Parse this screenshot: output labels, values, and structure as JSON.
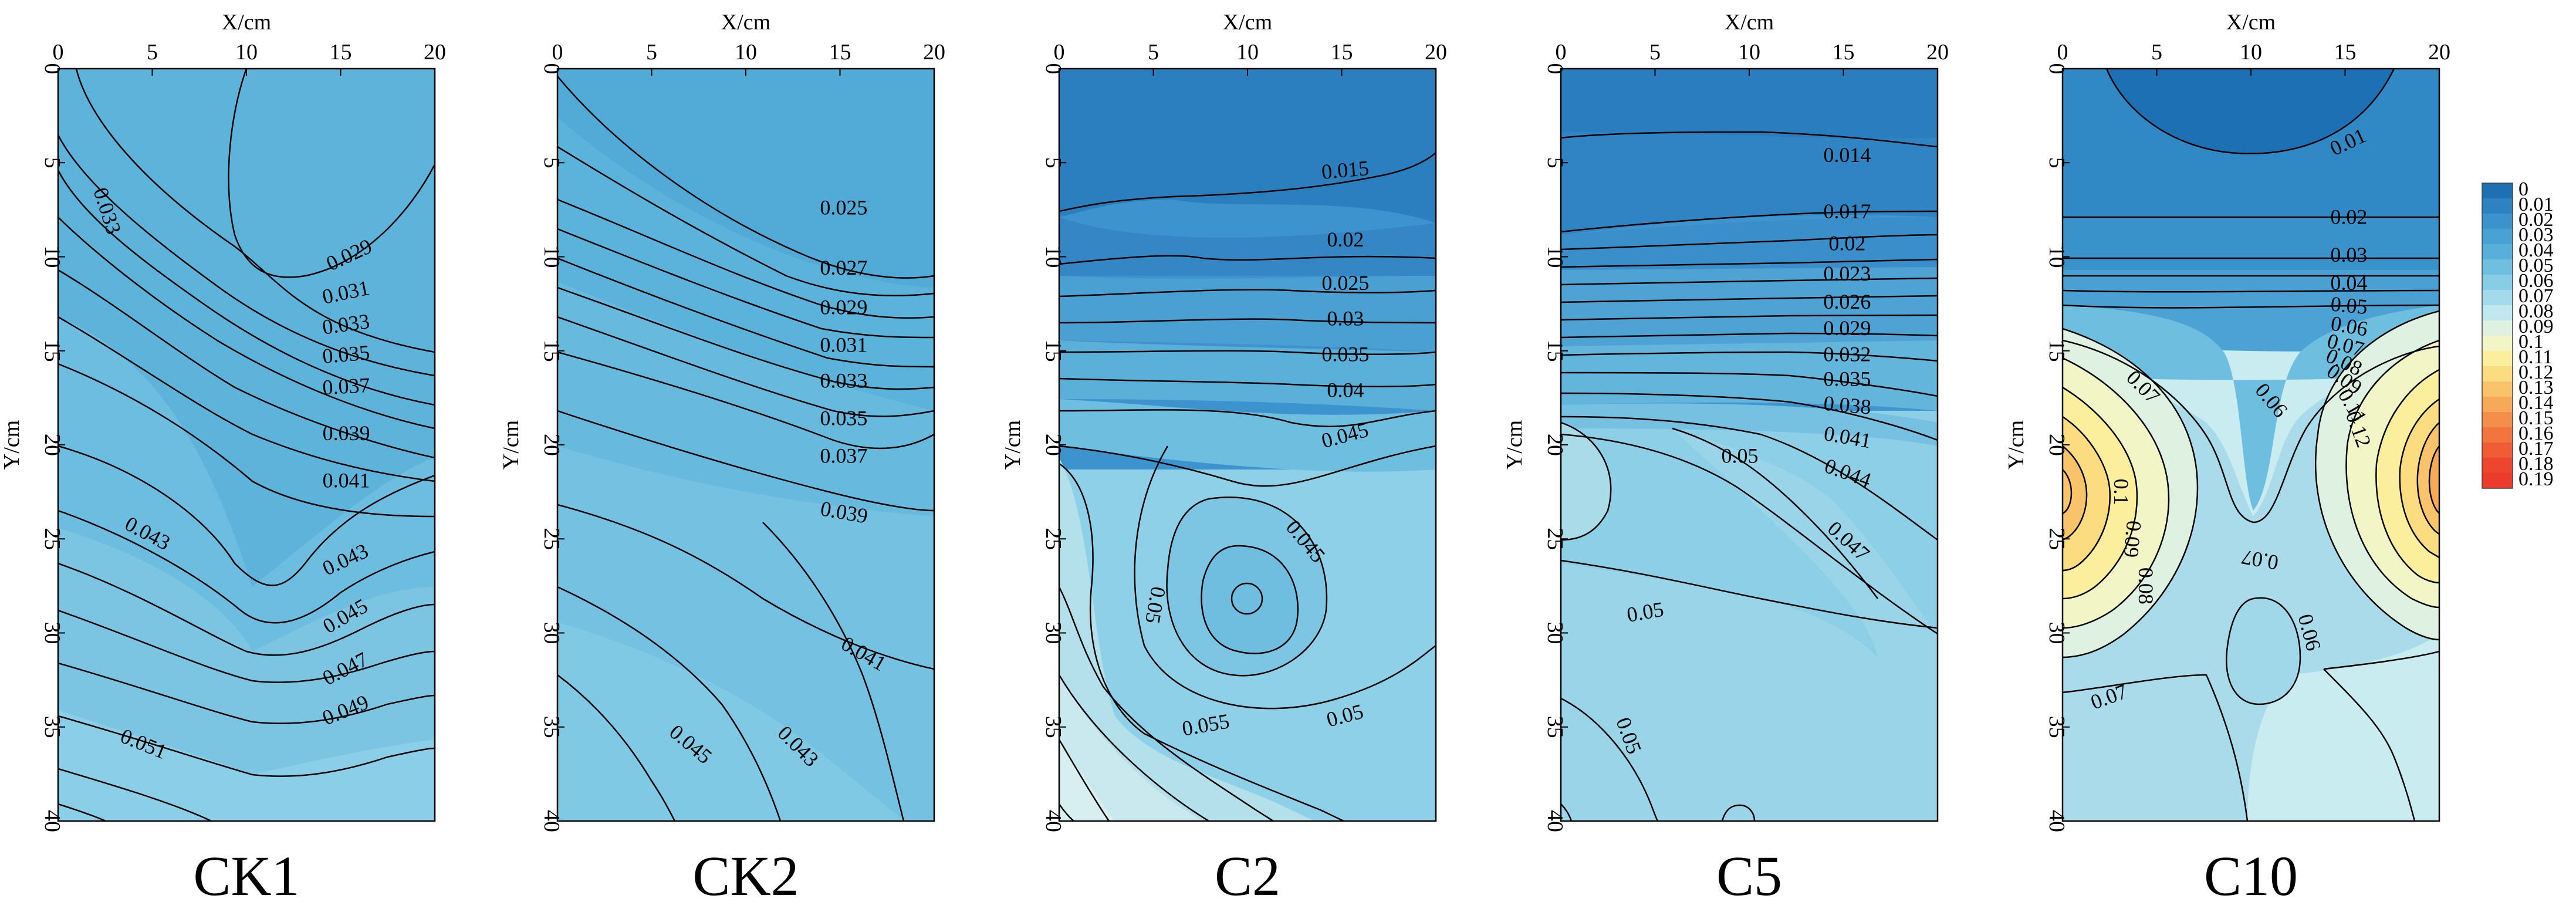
{
  "chart_data": {
    "type": "contour",
    "x_axis": {
      "label": "X/cm",
      "ticks": [
        "0",
        "5",
        "10",
        "15",
        "20"
      ],
      "range": [
        0,
        20
      ]
    },
    "y_axis": {
      "label": "Y/cm",
      "ticks": [
        "0",
        "5",
        "10",
        "15",
        "20",
        "25",
        "30",
        "35",
        "40"
      ],
      "range": [
        0,
        40
      ],
      "inverted": true
    },
    "colorbar": {
      "levels": [
        "0",
        "0.01",
        "0.02",
        "0.03",
        "0.04",
        "0.05",
        "0.06",
        "0.07",
        "0.08",
        "0.09",
        "0.1",
        "0.11",
        "0.12",
        "0.13",
        "0.14",
        "0.15",
        "0.16",
        "0.17",
        "0.18",
        "0.19"
      ],
      "colors": [
        "#1f6fb4",
        "#2e82c2",
        "#3c92cd",
        "#48a2d4",
        "#58b0da",
        "#6fbfe0",
        "#87cde6",
        "#a3dbec",
        "#c2e8ef",
        "#dff2e2",
        "#f2f6c7",
        "#fbef9e",
        "#fbdc81",
        "#f9c36b",
        "#f7a95a",
        "#f48f4b",
        "#f2743f",
        "#f05c36",
        "#ee452f",
        "#ec3a2c"
      ]
    },
    "panels": [
      {
        "name": "CK1",
        "contour_labels": [
          {
            "text": "0.033",
            "x": 2.5,
            "y": 7.6,
            "angle": 72
          },
          {
            "text": "0.029",
            "x": 15.5,
            "y": 10.0,
            "angle": -25
          },
          {
            "text": "0.031",
            "x": 15.3,
            "y": 12.0,
            "angle": -12
          },
          {
            "text": "0.033",
            "x": 15.3,
            "y": 13.7,
            "angle": -8
          },
          {
            "text": "0.035",
            "x": 15.3,
            "y": 15.3,
            "angle": -5
          },
          {
            "text": "0.037",
            "x": 15.3,
            "y": 17.0,
            "angle": -3
          },
          {
            "text": "0.039",
            "x": 15.3,
            "y": 19.5,
            "angle": 0
          },
          {
            "text": "0.041",
            "x": 15.3,
            "y": 22.0,
            "angle": 0
          },
          {
            "text": "0.043",
            "x": 4.7,
            "y": 24.8,
            "angle": 28
          },
          {
            "text": "0.043",
            "x": 15.3,
            "y": 26.2,
            "angle": -25
          },
          {
            "text": "0.045",
            "x": 15.3,
            "y": 29.2,
            "angle": -30
          },
          {
            "text": "0.047",
            "x": 15.3,
            "y": 32.0,
            "angle": -27
          },
          {
            "text": "0.049",
            "x": 15.3,
            "y": 34.2,
            "angle": -22
          },
          {
            "text": "0.051",
            "x": 4.5,
            "y": 36.0,
            "angle": 22
          }
        ]
      },
      {
        "name": "CK2",
        "contour_labels": [
          {
            "text": "0.025",
            "x": 15.2,
            "y": 7.5,
            "angle": 0
          },
          {
            "text": "0.027",
            "x": 15.2,
            "y": 10.7,
            "angle": 0
          },
          {
            "text": "0.029",
            "x": 15.2,
            "y": 12.8,
            "angle": 0
          },
          {
            "text": "0.031",
            "x": 15.2,
            "y": 14.8,
            "angle": 0
          },
          {
            "text": "0.033",
            "x": 15.2,
            "y": 16.7,
            "angle": 0
          },
          {
            "text": "0.035",
            "x": 15.2,
            "y": 18.7,
            "angle": 0
          },
          {
            "text": "0.037",
            "x": 15.2,
            "y": 20.7,
            "angle": 0
          },
          {
            "text": "0.039",
            "x": 15.2,
            "y": 23.7,
            "angle": 10
          },
          {
            "text": "0.041",
            "x": 16.2,
            "y": 31.2,
            "angle": 30
          },
          {
            "text": "0.045",
            "x": 7.0,
            "y": 36.0,
            "angle": 40
          },
          {
            "text": "0.043",
            "x": 12.7,
            "y": 36.1,
            "angle": 45
          }
        ]
      },
      {
        "name": "C2",
        "contour_labels": [
          {
            "text": "0.015",
            "x": 15.2,
            "y": 5.5,
            "angle": -5
          },
          {
            "text": "0.02",
            "x": 15.2,
            "y": 9.2,
            "angle": 0
          },
          {
            "text": "0.025",
            "x": 15.2,
            "y": 11.5,
            "angle": 0
          },
          {
            "text": "0.03",
            "x": 15.2,
            "y": 13.4,
            "angle": 0
          },
          {
            "text": "0.035",
            "x": 15.2,
            "y": 15.3,
            "angle": 0
          },
          {
            "text": "0.04",
            "x": 15.2,
            "y": 17.2,
            "angle": 0
          },
          {
            "text": "0.045",
            "x": 15.2,
            "y": 19.6,
            "angle": -15
          },
          {
            "text": "0.045",
            "x": 13.0,
            "y": 25.2,
            "angle": 50
          },
          {
            "text": "0.05",
            "x": 5.0,
            "y": 28.5,
            "angle": 100
          },
          {
            "text": "0.05",
            "x": 15.2,
            "y": 34.5,
            "angle": -15
          },
          {
            "text": "0.055",
            "x": 7.8,
            "y": 35.0,
            "angle": -10
          }
        ]
      },
      {
        "name": "C5",
        "contour_labels": [
          {
            "text": "0.014",
            "x": 15.2,
            "y": 4.7,
            "angle": 0
          },
          {
            "text": "0.017",
            "x": 15.2,
            "y": 7.7,
            "angle": 0
          },
          {
            "text": "0.02",
            "x": 15.2,
            "y": 9.4,
            "angle": 0
          },
          {
            "text": "0.023",
            "x": 15.2,
            "y": 11.0,
            "angle": 0
          },
          {
            "text": "0.026",
            "x": 15.2,
            "y": 12.5,
            "angle": 0
          },
          {
            "text": "0.029",
            "x": 15.2,
            "y": 13.9,
            "angle": 0
          },
          {
            "text": "0.032",
            "x": 15.2,
            "y": 15.3,
            "angle": 0
          },
          {
            "text": "0.035",
            "x": 15.2,
            "y": 16.6,
            "angle": 0
          },
          {
            "text": "0.038",
            "x": 15.2,
            "y": 18.0,
            "angle": 5
          },
          {
            "text": "0.041",
            "x": 15.2,
            "y": 19.7,
            "angle": 10
          },
          {
            "text": "0.044",
            "x": 15.2,
            "y": 21.6,
            "angle": 20
          },
          {
            "text": "0.05",
            "x": 9.5,
            "y": 20.7,
            "angle": 0
          },
          {
            "text": "0.047",
            "x": 15.2,
            "y": 25.2,
            "angle": 42
          },
          {
            "text": "0.05",
            "x": 4.5,
            "y": 29.0,
            "angle": -10
          },
          {
            "text": "0.05",
            "x": 3.5,
            "y": 35.5,
            "angle": 70
          }
        ]
      },
      {
        "name": "C10",
        "contour_labels": [
          {
            "text": "0.01",
            "x": 15.2,
            "y": 4.0,
            "angle": -25
          },
          {
            "text": "0.02",
            "x": 15.2,
            "y": 8.0,
            "angle": 0
          },
          {
            "text": "0.03",
            "x": 15.2,
            "y": 10.0,
            "angle": 0
          },
          {
            "text": "0.04",
            "x": 15.2,
            "y": 11.5,
            "angle": 0
          },
          {
            "text": "0.05",
            "x": 15.2,
            "y": 12.7,
            "angle": 5
          },
          {
            "text": "0.06",
            "x": 15.2,
            "y": 13.8,
            "angle": 10
          },
          {
            "text": "0.07",
            "x": 15.0,
            "y": 14.8,
            "angle": 15
          },
          {
            "text": "0.08",
            "x": 14.9,
            "y": 15.7,
            "angle": 25
          },
          {
            "text": "0.09",
            "x": 14.9,
            "y": 16.6,
            "angle": 35
          },
          {
            "text": "0.11",
            "x": 15.3,
            "y": 18.0,
            "angle": 60
          },
          {
            "text": "0.12",
            "x": 15.6,
            "y": 19.2,
            "angle": 70
          },
          {
            "text": "0.07",
            "x": 4.2,
            "y": 17.0,
            "angle": 45
          },
          {
            "text": "0.06",
            "x": 11.0,
            "y": 17.7,
            "angle": 50
          },
          {
            "text": "0.1",
            "x": 3.0,
            "y": 22.5,
            "angle": 90
          },
          {
            "text": "0.09",
            "x": 3.6,
            "y": 25.0,
            "angle": 95
          },
          {
            "text": "0.08",
            "x": 4.3,
            "y": 27.5,
            "angle": 90
          },
          {
            "text": "0.07",
            "x": 10.5,
            "y": 26.0,
            "angle": 190
          },
          {
            "text": "0.06",
            "x": 13.0,
            "y": 30.0,
            "angle": 75
          },
          {
            "text": "0.07",
            "x": 2.5,
            "y": 33.5,
            "angle": -20
          }
        ]
      }
    ]
  }
}
